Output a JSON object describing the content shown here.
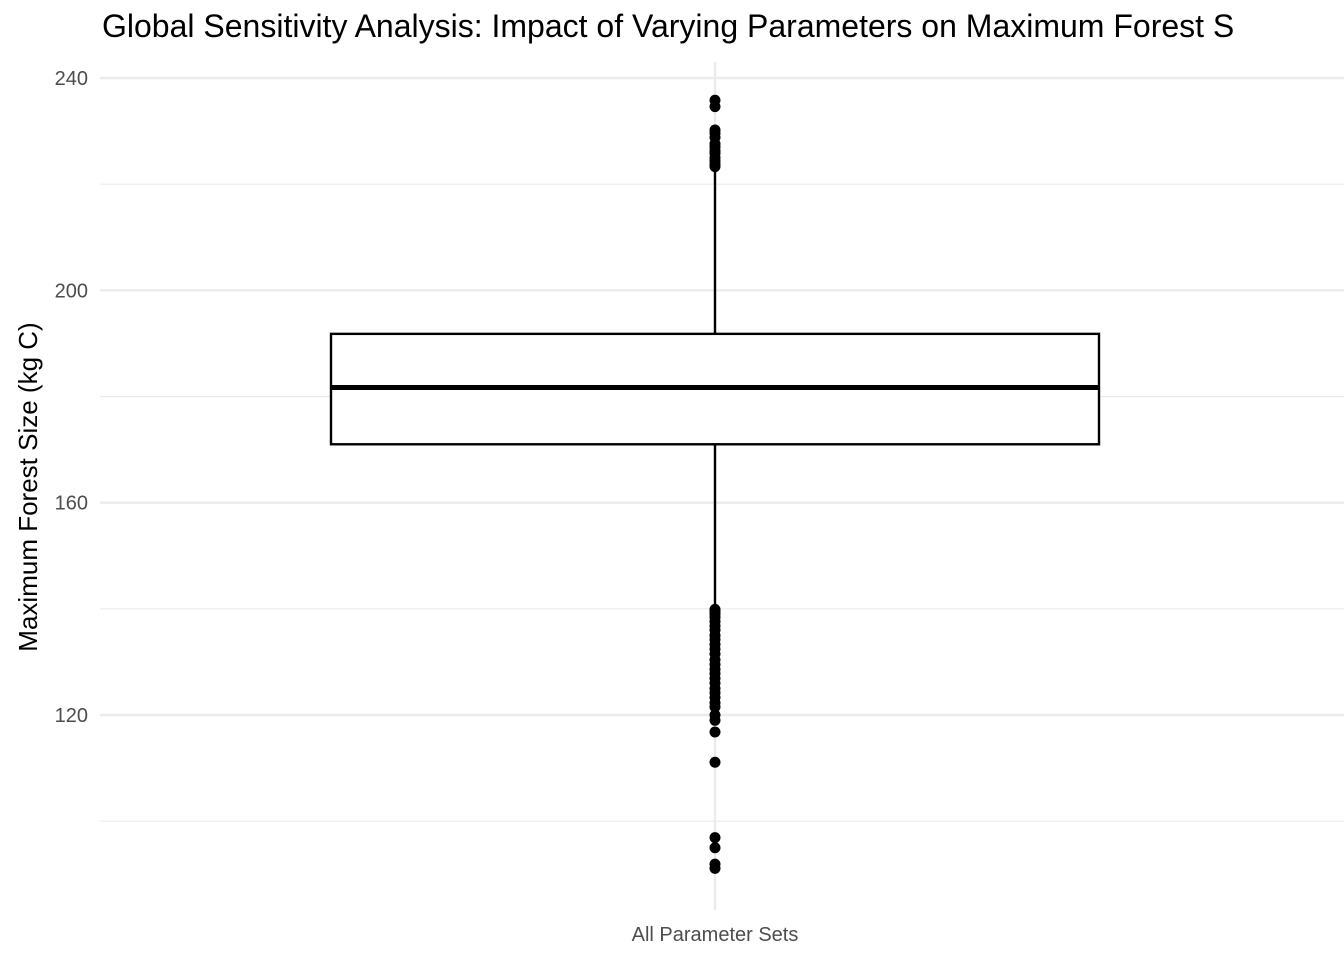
{
  "chart_data": {
    "type": "box",
    "title": "Global Sensitivity Analysis: Impact of Varying Parameters on Maximum Forest S",
    "xlabel": "",
    "ylabel": "Maximum Forest Size (kg C)",
    "categories": [
      "All Parameter Sets"
    ],
    "ylim": [
      90,
      242
    ],
    "yticks": [
      120,
      160,
      200,
      240
    ],
    "grid": true,
    "legend": "none",
    "boxes": [
      {
        "category": "All Parameter Sets",
        "lower_whisker": 140,
        "q1": 171,
        "median": 181.7,
        "q3": 191.8,
        "upper_whisker": 223,
        "outliers": [
          235.8,
          234.6,
          230.2,
          229.6,
          228.8,
          227.6,
          227.0,
          226.3,
          225.8,
          225.0,
          224.4,
          223.8,
          223.3,
          139.9,
          139.5,
          139.0,
          138.4,
          137.6,
          136.8,
          136.0,
          135.0,
          134.2,
          133.3,
          132.4,
          131.5,
          130.4,
          129.5,
          128.6,
          127.8,
          126.9,
          126.0,
          125.0,
          124.2,
          123.3,
          122.3,
          121.5,
          120.0,
          119.0,
          116.8,
          111.1,
          96.9,
          95.0,
          91.9,
          91.1
        ]
      }
    ],
    "colors": {
      "box_fill": "#ffffff",
      "stroke": "#000000",
      "grid": "#ebebeb",
      "tick_text": "#4d4d4d"
    }
  }
}
